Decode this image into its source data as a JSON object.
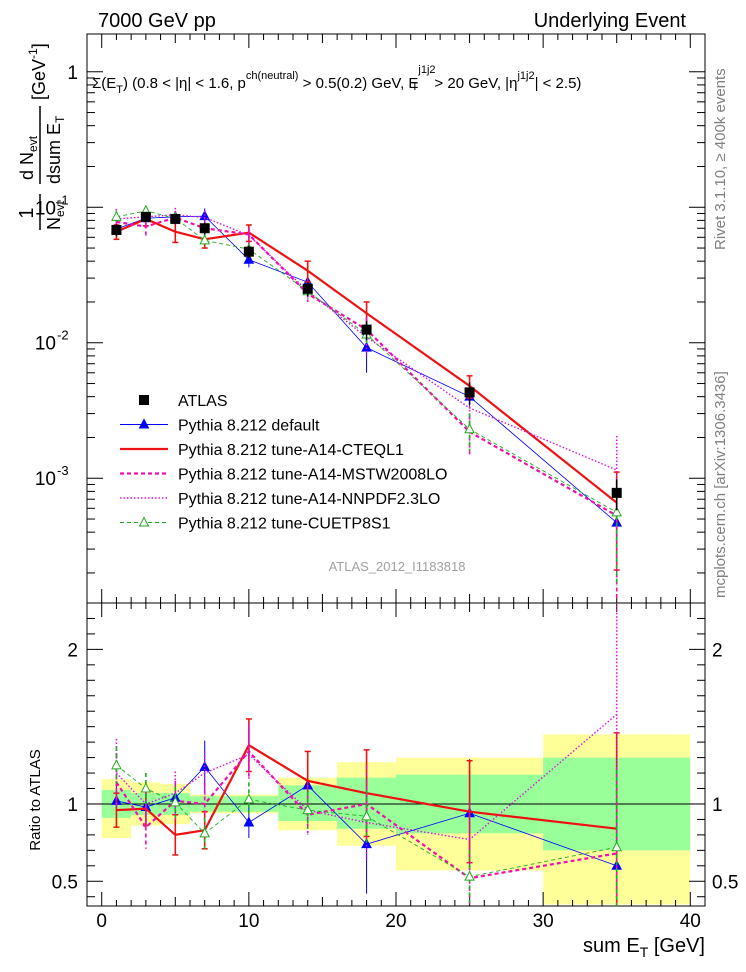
{
  "header": {
    "left": "7000 GeV pp",
    "right": "Underlying Event",
    "selection": "Σ(E_T) (0.8 < |η| < 1.6, p^ch(neutral) > 0.5(0.2) GeV, E_T^j1j2 > 20 GeV, |η^j1j2| < 2.5)",
    "selection_parts": [
      "Σ(E",
      "T",
      ") (0.8 < |η| < 1.6, p",
      "ch(neutral)",
      " > 0.5(0.2) GeV, E",
      "j1j2",
      "T",
      " > 20 GeV, |η",
      "j1j2",
      "| < 2.5)"
    ],
    "analysis_id": "ATLAS_2012_I1183818"
  },
  "side_text": {
    "top": "Rivet 3.1.10, ≥ 400k events",
    "bottom": "mcplots.cern.ch [arXiv:1306.3436]"
  },
  "colors": {
    "data": "#000000",
    "default": "#0000ff",
    "cteql1": "#ee1111",
    "mstw": "#ee11aa",
    "nnpdf": "#dd11dd",
    "cuetp8s1": "#22aa22",
    "band_inner": "#99ff99",
    "band_outer": "#ffff99"
  },
  "chart_data": [
    {
      "type": "scatter",
      "role": "distribution",
      "xlabel": "sum E_T [GeV]",
      "ylabel": "1/N_evt dN_evt/dsum E_T [GeV^-1]",
      "ylabel_parts": [
        "1",
        "N",
        "evt",
        "d N",
        "evt",
        "dsum E",
        "T",
        "[GeV",
        "-1",
        "]"
      ],
      "x_range": [
        -1,
        41
      ],
      "y_range": [
        0.00012,
        1.9
      ],
      "y_scale": "log",
      "y_ticks": [
        {
          "value": 1,
          "label": "1"
        },
        {
          "value": 0.1,
          "label": "10",
          "exp": "-1"
        },
        {
          "value": 0.01,
          "label": "10",
          "exp": "-2"
        },
        {
          "value": 0.001,
          "label": "10",
          "exp": "-3"
        }
      ],
      "x": [
        1,
        3,
        5,
        7,
        10,
        14,
        18,
        25,
        35
      ],
      "x_bins": [
        [
          0,
          2
        ],
        [
          2,
          4
        ],
        [
          4,
          6
        ],
        [
          6,
          8
        ],
        [
          8,
          12
        ],
        [
          12,
          16
        ],
        [
          16,
          20
        ],
        [
          20,
          30
        ],
        [
          30,
          40
        ]
      ],
      "legend": [
        "ATLAS",
        "Pythia 8.212 default",
        "Pythia 8.212 tune-A14-CTEQL1",
        "Pythia 8.212 tune-A14-MSTW2008LO",
        "Pythia 8.212 tune-A14-NNPDF2.3LO",
        "Pythia 8.212 tune-CUETP8S1"
      ],
      "legend_position": "bottom-left",
      "series": [
        {
          "name": "ATLAS",
          "key": "data",
          "style": "square",
          "values": [
            0.068,
            0.085,
            0.082,
            0.07,
            0.047,
            0.025,
            0.0125,
            0.0043,
            0.00078
          ],
          "errors": [
            0.007,
            0.007,
            0.007,
            0.007,
            0.005,
            0.003,
            0.002,
            0.0008,
            0.0002
          ]
        },
        {
          "name": "Pythia 8.212 default",
          "key": "default",
          "style": "line-triangle",
          "values": [
            0.069,
            0.083,
            0.085,
            0.086,
            0.041,
            0.028,
            0.0092,
            0.004,
            0.00047
          ],
          "errors": [
            0.008,
            0.009,
            0.009,
            0.012,
            0.005,
            0.003,
            0.0032,
            0.0006,
            0.00028
          ]
        },
        {
          "name": "Pythia 8.212 tune-A14-CTEQL1",
          "key": "cteql1",
          "style": "line-thick",
          "values": [
            0.066,
            0.082,
            0.066,
            0.058,
            0.065,
            0.034,
            0.0165,
            0.0048,
            0.00066
          ],
          "errors": [
            0.008,
            0.009,
            0.011,
            0.008,
            0.009,
            0.006,
            0.0035,
            0.0009,
            0.00045
          ]
        },
        {
          "name": "Pythia 8.212 tune-A14-MSTW2008LO",
          "key": "mstw",
          "style": "dashed",
          "values": [
            0.078,
            0.072,
            0.084,
            0.07,
            0.063,
            0.023,
            0.0125,
            0.0022,
            0.00053
          ],
          "errors": [
            0.012,
            0.012,
            0.01,
            0.01,
            0.008,
            0.003,
            0.003,
            0.0007,
            0.0004
          ]
        },
        {
          "name": "Pythia 8.212 tune-A14-NNPDF2.3LO",
          "key": "nnpdf",
          "style": "dotted",
          "values": [
            0.082,
            0.085,
            0.088,
            0.084,
            0.062,
            0.024,
            0.011,
            0.0033,
            0.00115
          ],
          "errors": [
            0.015,
            0.012,
            0.011,
            0.01,
            0.008,
            0.004,
            0.003,
            0.001,
            0.0009
          ]
        },
        {
          "name": "Pythia 8.212 tune-CUETP8S1",
          "key": "cuetp8s1",
          "style": "dashed-open-triangle",
          "values": [
            0.085,
            0.094,
            0.083,
            0.057,
            0.049,
            0.024,
            0.0115,
            0.0023,
            0.00056
          ],
          "errors": [
            0.009,
            0.008,
            0.008,
            0.007,
            0.005,
            0.003,
            0.002,
            0.0007,
            0.0004
          ]
        }
      ]
    },
    {
      "type": "scatter",
      "role": "ratio",
      "xlabel": "sum E_T [GeV]",
      "xlabel_parts": [
        "sum E",
        "T",
        " [GeV]"
      ],
      "ylabel": "Ratio to ATLAS",
      "x_range": [
        -1,
        41
      ],
      "y_range": [
        0.34,
        2.3
      ],
      "x_ticks": [
        0,
        10,
        20,
        30,
        40
      ],
      "y_ticks": [
        0.5,
        1,
        2
      ],
      "y_tick_labels": [
        "0.5",
        "1",
        "2"
      ],
      "x": [
        1,
        3,
        5,
        7,
        10,
        14,
        18,
        25,
        35
      ],
      "band_inner": [
        [
          0.91,
          1.09
        ],
        [
          0.93,
          1.07
        ],
        [
          0.93,
          1.07
        ],
        [
          0.95,
          1.05
        ],
        [
          0.95,
          1.05
        ],
        [
          0.89,
          1.12
        ],
        [
          0.84,
          1.17
        ],
        [
          0.81,
          1.19
        ],
        [
          0.7,
          1.3
        ]
      ],
      "band_outer": [
        [
          0.78,
          1.16
        ],
        [
          0.86,
          1.14
        ],
        [
          0.87,
          1.13
        ],
        [
          0.94,
          1.06
        ],
        [
          0.94,
          1.06
        ],
        [
          0.83,
          1.17
        ],
        [
          0.73,
          1.27
        ],
        [
          0.57,
          1.3
        ],
        [
          0.35,
          1.45
        ]
      ],
      "series": [
        {
          "name": "Pythia 8.212 default",
          "key": "default",
          "values": [
            1.02,
            0.98,
            1.04,
            1.24,
            0.88,
            1.12,
            0.74,
            0.94,
            0.6
          ],
          "errors": [
            0.1,
            0.1,
            0.1,
            0.17,
            0.1,
            0.13,
            0.32,
            0.35,
            0.36
          ]
        },
        {
          "name": "Pythia 8.212 tune-A14-CTEQL1",
          "key": "cteql1",
          "values": [
            0.96,
            0.97,
            0.8,
            0.83,
            1.38,
            1.15,
            1.07,
            0.95,
            0.84
          ],
          "errors": [
            0.11,
            0.11,
            0.13,
            0.12,
            0.17,
            0.19,
            0.28,
            0.33,
            0.62
          ]
        },
        {
          "name": "Pythia 8.212 tune-A14-MSTW2008LO",
          "key": "mstw",
          "values": [
            1.14,
            0.85,
            1.02,
            1.0,
            1.34,
            0.93,
            1.0,
            0.52,
            0.68
          ],
          "errors": [
            0.18,
            0.14,
            0.13,
            0.14,
            0.18,
            0.12,
            0.25,
            0.17,
            0.55
          ]
        },
        {
          "name": "Pythia 8.212 tune-A14-NNPDF2.3LO",
          "key": "nnpdf",
          "values": [
            1.2,
            1.0,
            1.07,
            1.2,
            1.32,
            0.96,
            0.88,
            0.77,
            1.58
          ],
          "errors": [
            0.22,
            0.14,
            0.14,
            0.14,
            0.17,
            0.16,
            0.24,
            0.24,
            1.2
          ]
        },
        {
          "name": "Pythia 8.212 tune-CUETP8S1",
          "key": "cuetp8s1",
          "values": [
            1.25,
            1.1,
            1.01,
            0.81,
            1.03,
            0.96,
            0.92,
            0.53,
            0.72
          ],
          "errors": [
            0.12,
            0.1,
            0.1,
            0.1,
            0.11,
            0.12,
            0.17,
            0.17,
            0.5
          ]
        }
      ]
    }
  ]
}
